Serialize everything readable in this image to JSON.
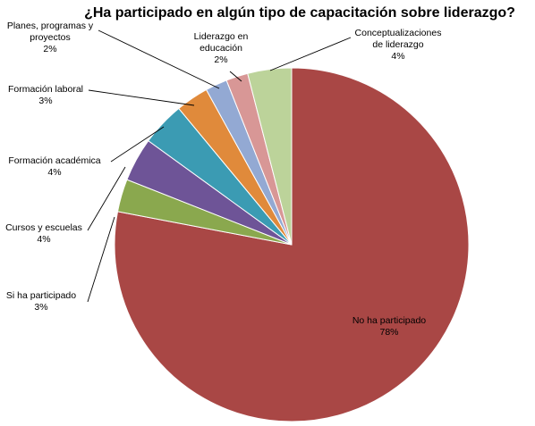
{
  "chart_data": {
    "type": "pie",
    "title": "¿Ha participado en algún tipo de capacitación sobre liderazgo?",
    "slices": [
      {
        "label": "No ha participado",
        "value": 78,
        "value_label": "78%",
        "color": "#A94745"
      },
      {
        "label": "Si ha participado",
        "value": 3,
        "value_label": "3%",
        "color": "#8AA84E"
      },
      {
        "label": "Cursos y escuelas",
        "value": 4,
        "value_label": "4%",
        "color": "#6E5497"
      },
      {
        "label": "Formación académica",
        "value": 4,
        "value_label": "4%",
        "color": "#3B9BB3"
      },
      {
        "label": "Formación laboral",
        "value": 3,
        "value_label": "3%",
        "color": "#E08A3B"
      },
      {
        "label": "Planes, programas y proyectos",
        "value": 2,
        "value_label": "2%",
        "color": "#93A9D3"
      },
      {
        "label": "Liderazgo en educación",
        "value": 2,
        "value_label": "2%",
        "color": "#D89796"
      },
      {
        "label": "Conceptualizaciones de liderazgo",
        "value": 4,
        "value_label": "4%",
        "color": "#BCD39A"
      }
    ],
    "legend": "none",
    "start_angle": "12 o'clock",
    "direction": "clockwise"
  }
}
